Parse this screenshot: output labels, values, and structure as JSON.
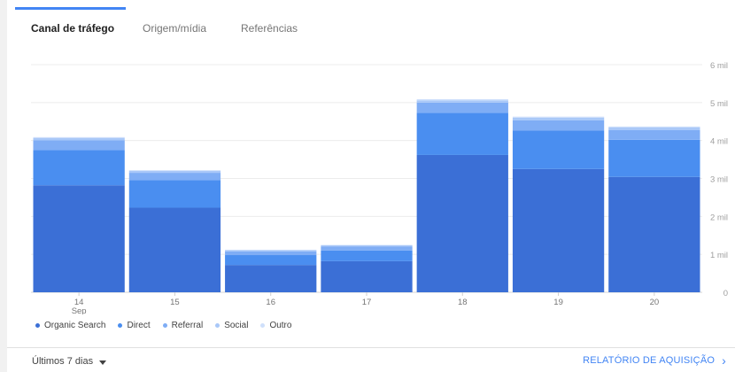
{
  "tabs": [
    {
      "label": "Canal de tráfego",
      "active": true
    },
    {
      "label": "Origem/mídia",
      "active": false
    },
    {
      "label": "Referências",
      "active": false
    }
  ],
  "footer": {
    "range_label": "Últimos 7 dias",
    "report_link": "RELATÓRIO DE AQUISIÇÃO"
  },
  "colors": {
    "Organic Search": "#3b6fd6",
    "Direct": "#4a8ef0",
    "Referral": "#7fadf5",
    "Social": "#a9c8f8",
    "Outro": "#cfe0fb"
  },
  "chart_data": {
    "type": "bar",
    "stacked": true,
    "categories": [
      "14",
      "15",
      "16",
      "17",
      "18",
      "19",
      "20"
    ],
    "category_sublabels": [
      "Sep",
      "",
      "",
      "",
      "",
      "",
      ""
    ],
    "ylim": [
      0,
      6000
    ],
    "yticks": [
      {
        "value": 0,
        "label": "0"
      },
      {
        "value": 1000,
        "label": "1 mil"
      },
      {
        "value": 2000,
        "label": "2 mil"
      },
      {
        "value": 3000,
        "label": "3 mil"
      },
      {
        "value": 4000,
        "label": "4 mil"
      },
      {
        "value": 5000,
        "label": "5 mil"
      },
      {
        "value": 6000,
        "label": "6 mil"
      }
    ],
    "grid": true,
    "legend_position": "bottom-left",
    "series": [
      {
        "name": "Organic Search",
        "values": [
          2820,
          2230,
          720,
          820,
          3620,
          3250,
          3040
        ]
      },
      {
        "name": "Direct",
        "values": [
          930,
          730,
          260,
          280,
          1110,
          1010,
          980
        ]
      },
      {
        "name": "Referral",
        "values": [
          260,
          190,
          100,
          110,
          270,
          270,
          260
        ]
      },
      {
        "name": "Social",
        "values": [
          60,
          50,
          30,
          30,
          60,
          70,
          70
        ]
      },
      {
        "name": "Outro",
        "values": [
          20,
          20,
          10,
          10,
          30,
          30,
          20
        ]
      }
    ]
  }
}
